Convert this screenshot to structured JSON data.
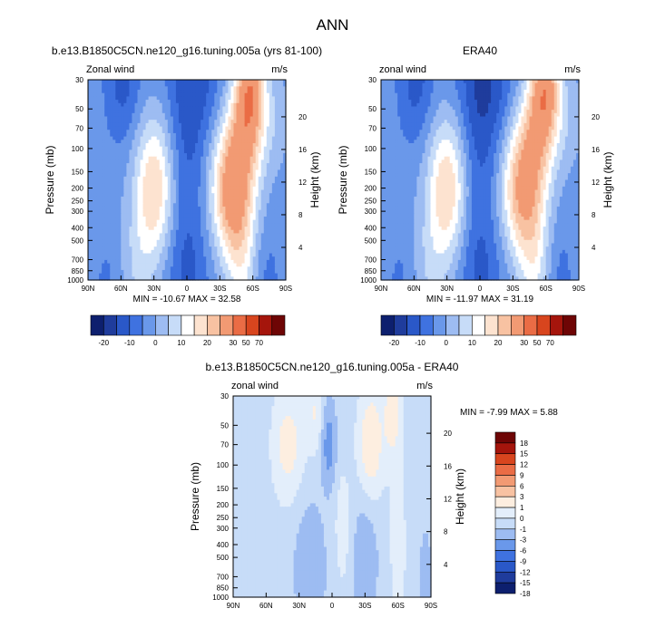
{
  "figure_title": "ANN",
  "colors": {
    "contour_12": [
      "#0d1f6e",
      "#1f3c9c",
      "#2a58c8",
      "#3f72e0",
      "#6a98ea",
      "#9dbcf2",
      "#c7dcf8",
      "#ffffff",
      "#fde3d0",
      "#f8c2a2",
      "#f29a73",
      "#ea6c45",
      "#d8451e",
      "#a5150c",
      "#6e0505"
    ],
    "contour_diff": [
      "#0d1f6e",
      "#1f3c9c",
      "#2a58c8",
      "#3f72e0",
      "#6a98ea",
      "#9dbcf2",
      "#c7dcf8",
      "#e3eefb",
      "#fdeee0",
      "#f8c2a2",
      "#f29a73",
      "#ea6c45",
      "#d8451e",
      "#a5150c",
      "#6e0505"
    ]
  },
  "chart_data": [
    {
      "type": "heatmap",
      "title": "b.e13.B1850C5CN.ne120_g16.tuning.005a (yrs 81-100)",
      "left_label": "Zonal wind",
      "units": "m/s",
      "xlabel": "",
      "ylabel": "Pressure (mb)",
      "y2label": "Height (km)",
      "x_ticks": [
        "90N",
        "60N",
        "30N",
        "0",
        "30S",
        "60S",
        "90S"
      ],
      "y_ticks": [
        "30",
        "50",
        "70",
        "100",
        "150",
        "200",
        "250",
        "300",
        "400",
        "500",
        "700",
        "850",
        "1000"
      ],
      "y2_ticks": [
        "20",
        "16",
        "12",
        "8",
        "4"
      ],
      "y_log": true,
      "stats": "MIN = -10.67  MAX = 32.58",
      "min": -10.67,
      "max": 32.58,
      "colorbar_labels": [
        "-20",
        "-10",
        "0",
        "10",
        "20",
        "30",
        "50",
        "70"
      ],
      "features": {
        "nh_jet": {
          "lat": 30,
          "p": 200,
          "peak": 22
        },
        "sh_jet": {
          "lat": -42,
          "p": 200,
          "peak": 32
        },
        "east_top": {
          "lat": -8,
          "p": 30,
          "val": -10
        },
        "east_nhtop": {
          "lat": 58,
          "p": 30,
          "val": -10
        },
        "east_surface": {
          "lat": 0,
          "p": 1000,
          "val": -6
        },
        "sh_upper": {
          "lat": -58,
          "p": 30,
          "val": 28
        }
      }
    },
    {
      "type": "heatmap",
      "title": "ERA40",
      "left_label": "zonal wind",
      "units": "m/s",
      "xlabel": "",
      "ylabel": "Pressure (mb)",
      "y2label": "Height (km)",
      "x_ticks": [
        "90N",
        "60N",
        "30N",
        "0",
        "30S",
        "60S",
        "90S"
      ],
      "y_ticks": [
        "30",
        "50",
        "70",
        "100",
        "150",
        "200",
        "250",
        "300",
        "400",
        "500",
        "700",
        "850",
        "1000"
      ],
      "y2_ticks": [
        "20",
        "16",
        "12",
        "8",
        "4"
      ],
      "y_log": true,
      "stats": "MIN = -11.97  MAX = 31.19",
      "min": -11.97,
      "max": 31.19,
      "colorbar_labels": [
        "-20",
        "-10",
        "0",
        "10",
        "20",
        "30",
        "50",
        "70"
      ],
      "features": {
        "nh_jet": {
          "lat": 30,
          "p": 200,
          "peak": 22
        },
        "sh_jet": {
          "lat": -40,
          "p": 200,
          "peak": 30
        },
        "east_top": {
          "lat": -5,
          "p": 30,
          "val": -12
        },
        "east_nhtop": {
          "lat": 58,
          "p": 30,
          "val": -10
        },
        "east_surface": {
          "lat": 0,
          "p": 1000,
          "val": -6
        },
        "sh_upper": {
          "lat": -60,
          "p": 30,
          "val": 28
        }
      }
    },
    {
      "type": "heatmap",
      "title": "b.e13.B1850C5CN.ne120_g16.tuning.005a - ERA40",
      "left_label": "zonal wind",
      "units": "m/s",
      "xlabel": "",
      "ylabel": "Pressure (mb)",
      "y2label": "Height (km)",
      "x_ticks": [
        "90N",
        "60N",
        "30N",
        "0",
        "30S",
        "60S",
        "90S"
      ],
      "y_ticks": [
        "30",
        "50",
        "70",
        "100",
        "150",
        "200",
        "250",
        "300",
        "400",
        "500",
        "700",
        "850",
        "1000"
      ],
      "y2_ticks": [
        "20",
        "16",
        "12",
        "8",
        "4"
      ],
      "y_log": true,
      "stats": "MIN =  -7.99  MAX =   5.88",
      "min": -7.99,
      "max": 5.88,
      "colorbar_labels": [
        "18",
        "15",
        "12",
        "9",
        "6",
        "3",
        "1",
        "0",
        "-1",
        "-3",
        "-6",
        "-9",
        "-12",
        "-15",
        "-18"
      ]
    }
  ]
}
